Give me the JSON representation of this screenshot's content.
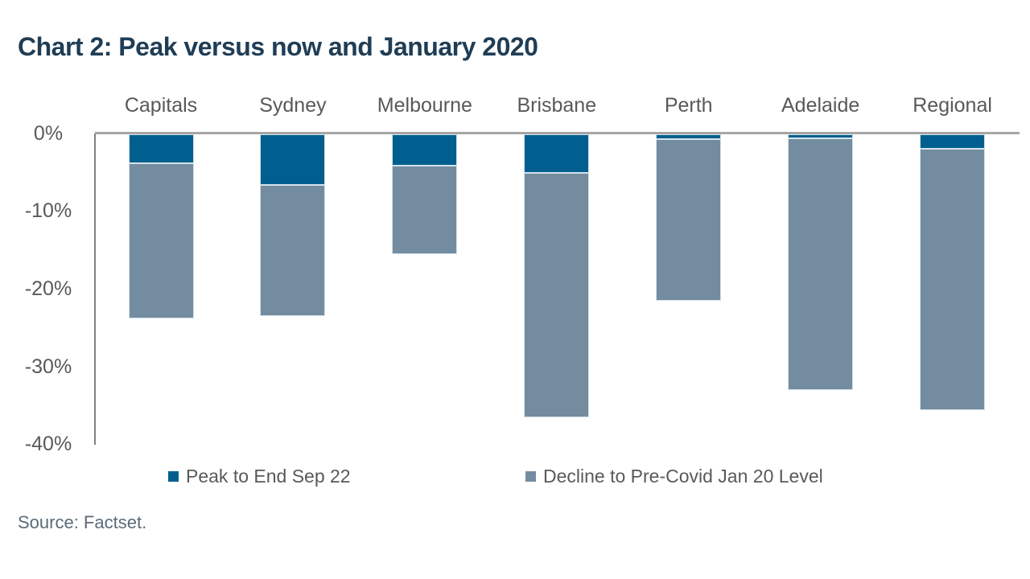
{
  "title": "Chart 2: Peak versus now and January 2020",
  "source": "Source: Factset.",
  "colors": {
    "title_text": "#1F3D55",
    "axis_text": "#595959",
    "zero_line": "#A6A6A6",
    "axis_line": "#808080",
    "source_text": "#5A6B78",
    "bar_border": "#D5E3EC",
    "peak_blue": "#005F8F",
    "decline_gray": "#748CA0"
  },
  "chart_data": {
    "type": "bar",
    "stacked": true,
    "direction": "negative-down",
    "title": "Chart 2: Peak versus now and January 2020",
    "categories": [
      "Capitals",
      "Sydney",
      "Melbourne",
      "Brisbane",
      "Perth",
      "Adelaide",
      "Regional"
    ],
    "series": [
      {
        "name": "Peak to End Sep 22",
        "color": "#005F8F",
        "values": [
          -3.7,
          -6.5,
          -4.0,
          -5.0,
          -0.6,
          -0.5,
          -1.9
        ]
      },
      {
        "name": "Decline to Pre-Covid Jan 20 Level",
        "color": "#748CA0",
        "values": [
          -20.0,
          -16.9,
          -11.4,
          -31.4,
          -20.8,
          -32.4,
          -33.6
        ]
      }
    ],
    "stack_totals": [
      -23.7,
      -23.4,
      -15.4,
      -36.4,
      -21.4,
      -32.9,
      -35.5
    ],
    "y_axis": {
      "tick_labels": [
        "0%",
        "-10%",
        "-20%",
        "-30%",
        "-40%"
      ],
      "tick_values": [
        0,
        -10,
        -20,
        -30,
        -40
      ],
      "ylim": [
        -40,
        0
      ]
    },
    "grid": false,
    "legend_position": "bottom",
    "legend": [
      {
        "label": "Peak to End Sep 22",
        "color": "#005F8F"
      },
      {
        "label": "Decline to Pre-Covid Jan 20 Level",
        "color": "#748CA0"
      }
    ]
  }
}
